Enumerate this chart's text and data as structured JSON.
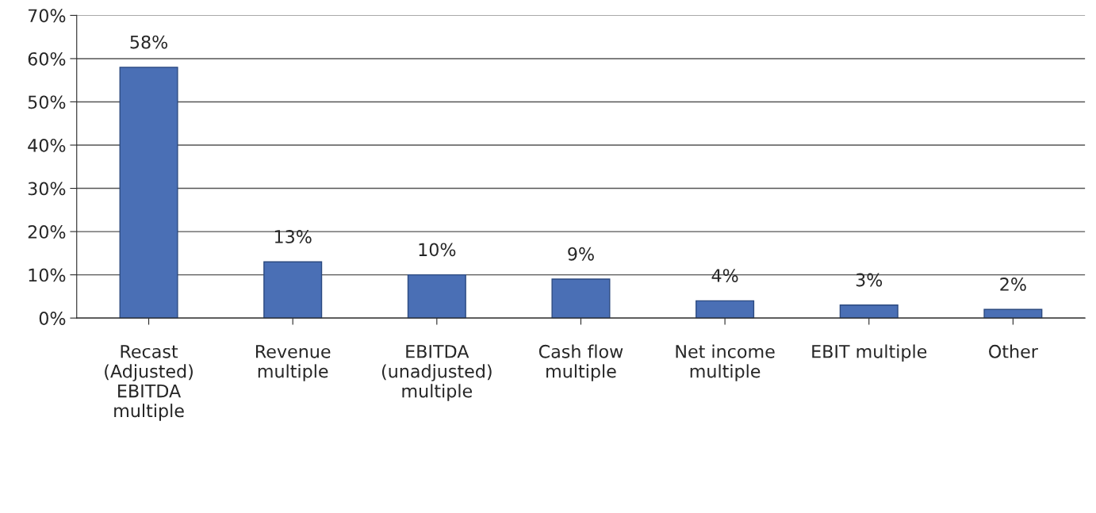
{
  "chart_data": {
    "type": "bar",
    "categories": [
      "Recast\n(Adjusted)\nEBITDA\nmultiple",
      "Revenue\nmultiple",
      "EBITDA\n(unadjusted)\nmultiple",
      "Cash flow\nmultiple",
      "Net income\nmultiple",
      "EBIT multiple",
      "Other"
    ],
    "values": [
      58,
      13,
      10,
      9,
      4,
      3,
      2
    ],
    "value_labels": [
      "58%",
      "13%",
      "10%",
      "9%",
      "4%",
      "3%",
      "2%"
    ],
    "color": "#4a6fb5",
    "ylim": [
      0,
      70
    ],
    "yticks": [
      {
        "value": 0,
        "label": "0%"
      },
      {
        "value": 10,
        "label": "10%"
      },
      {
        "value": 20,
        "label": "20%"
      },
      {
        "value": 30,
        "label": "30%"
      },
      {
        "value": 40,
        "label": "40%"
      },
      {
        "value": 50,
        "label": "50%"
      },
      {
        "value": 60,
        "label": "60%"
      },
      {
        "value": 70,
        "label": "70%"
      }
    ],
    "grid": "y"
  }
}
